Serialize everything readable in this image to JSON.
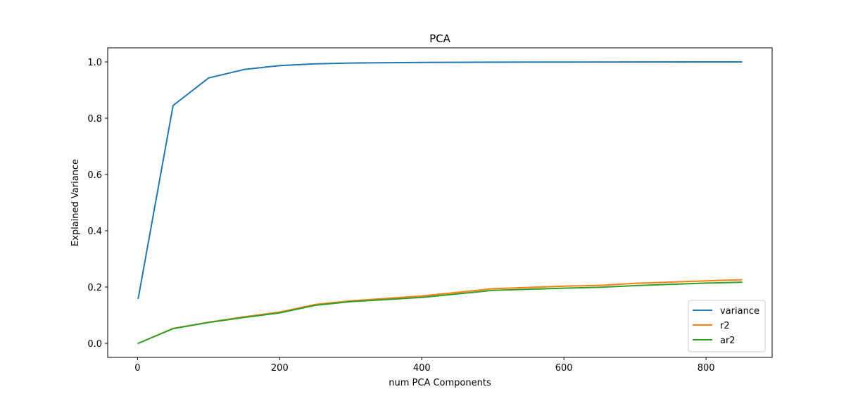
{
  "chart_data": {
    "type": "line",
    "title": "PCA",
    "xlabel": "num PCA Components",
    "ylabel": "Explained Variance",
    "xlim": [
      -42,
      893
    ],
    "ylim": [
      -0.05,
      1.05
    ],
    "xticks": [
      0,
      200,
      400,
      600,
      800
    ],
    "xtick_labels": [
      "0",
      "200",
      "400",
      "600",
      "800"
    ],
    "yticks": [
      0.0,
      0.2,
      0.4,
      0.6,
      0.8,
      1.0
    ],
    "ytick_labels": [
      "0.0",
      "0.2",
      "0.4",
      "0.6",
      "0.8",
      "1.0"
    ],
    "grid": false,
    "legend": {
      "position": "lower-right"
    },
    "series": [
      {
        "name": "variance",
        "color": "#1f77b4",
        "x": [
          1,
          50,
          100,
          150,
          200,
          250,
          300,
          400,
          500,
          600,
          700,
          800,
          850
        ],
        "y": [
          0.16,
          0.845,
          0.943,
          0.973,
          0.987,
          0.993,
          0.996,
          0.998,
          0.999,
          0.9995,
          0.9998,
          0.9999,
          1.0
        ]
      },
      {
        "name": "r2",
        "color": "#ff7f0e",
        "x": [
          1,
          50,
          100,
          150,
          200,
          250,
          300,
          400,
          500,
          600,
          650,
          700,
          800,
          850
        ],
        "y": [
          0.0,
          0.053,
          0.075,
          0.094,
          0.111,
          0.138,
          0.151,
          0.168,
          0.194,
          0.203,
          0.206,
          0.213,
          0.222,
          0.226
        ]
      },
      {
        "name": "ar2",
        "color": "#2ca02c",
        "x": [
          1,
          50,
          100,
          150,
          200,
          250,
          300,
          400,
          500,
          600,
          650,
          700,
          800,
          850
        ],
        "y": [
          0.0,
          0.052,
          0.074,
          0.092,
          0.108,
          0.135,
          0.148,
          0.163,
          0.188,
          0.196,
          0.199,
          0.205,
          0.214,
          0.217
        ]
      }
    ]
  }
}
